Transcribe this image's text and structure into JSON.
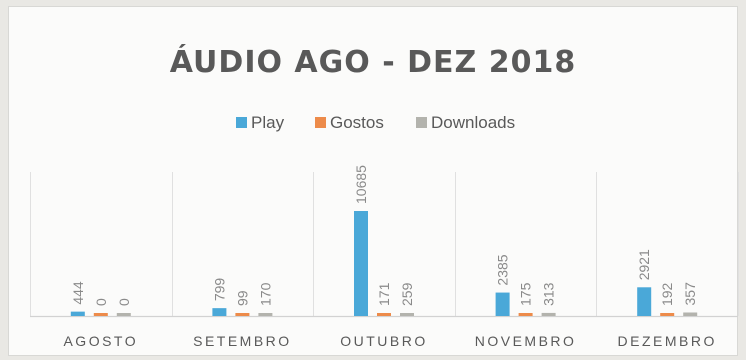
{
  "chart_data": {
    "type": "bar",
    "title": "ÁUDIO AGO - DEZ 2018",
    "categories": [
      "AGOSTO",
      "SETEMBRO",
      "OUTUBRO",
      "NOVEMBRO",
      "DEZEMBRO"
    ],
    "series": [
      {
        "name": "Play",
        "color": "#4aa8d8",
        "values": [
          444,
          799,
          10685,
          2385,
          2921
        ]
      },
      {
        "name": "Gostos",
        "color": "#ed8b4a",
        "values": [
          0,
          99,
          171,
          175,
          192
        ]
      },
      {
        "name": "Downloads",
        "color": "#b3b3ad",
        "values": [
          0,
          170,
          259,
          313,
          357
        ]
      }
    ],
    "ylim": [
      0,
      13000
    ],
    "data_labels": true,
    "legend_position": "top",
    "grid": "vertical category separators",
    "xlabel": "",
    "ylabel": ""
  }
}
